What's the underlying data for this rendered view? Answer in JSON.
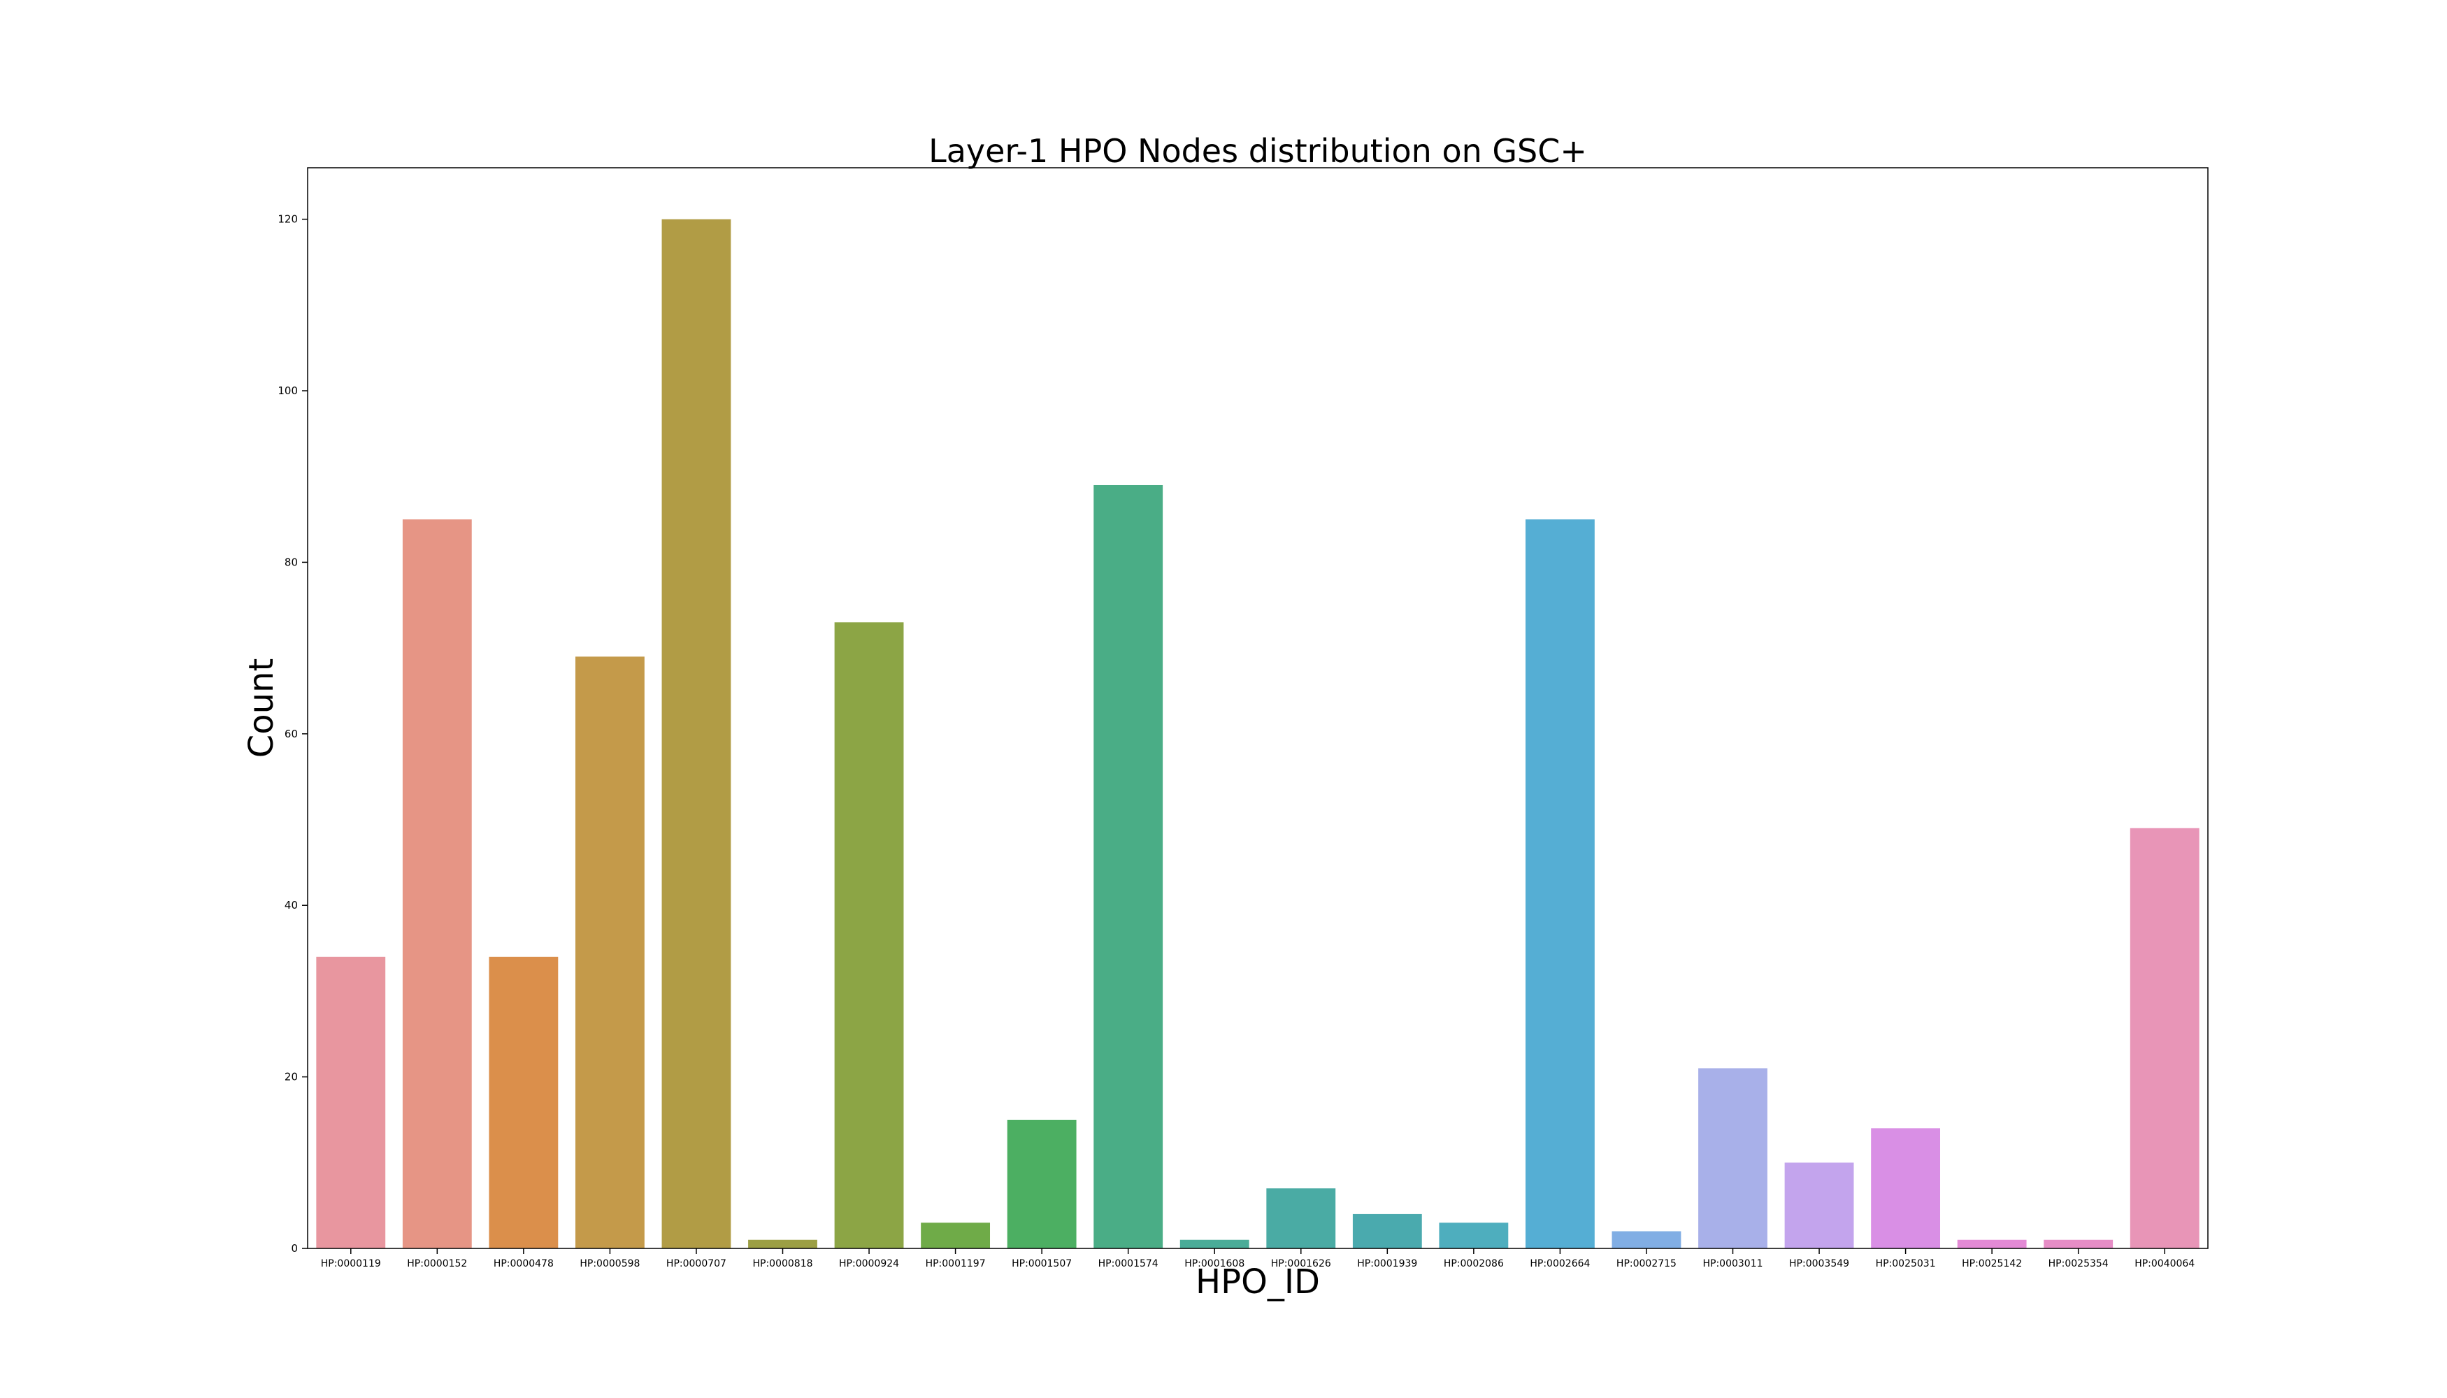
{
  "chart_data": {
    "type": "bar",
    "title": "Layer-1 HPO Nodes distribution on GSC+",
    "xlabel": "HPO_ID",
    "ylabel": "Count",
    "ylim": [
      0,
      126
    ],
    "yticks": [
      0,
      20,
      40,
      60,
      80,
      100,
      120
    ],
    "grid": false,
    "categories": [
      "HP:0000119",
      "HP:0000152",
      "HP:0000478",
      "HP:0000598",
      "HP:0000707",
      "HP:0000818",
      "HP:0000924",
      "HP:0001197",
      "HP:0001507",
      "HP:0001574",
      "HP:0001608",
      "HP:0001626",
      "HP:0001939",
      "HP:0002086",
      "HP:0002664",
      "HP:0002715",
      "HP:0003011",
      "HP:0003549",
      "HP:0025031",
      "HP:0025142",
      "HP:0025354",
      "HP:0040064"
    ],
    "values": [
      34,
      85,
      34,
      69,
      120,
      1,
      73,
      3,
      15,
      89,
      1,
      7,
      4,
      3,
      85,
      2,
      21,
      10,
      14,
      1,
      1,
      49
    ],
    "colors": [
      "#e8969f",
      "#e69585",
      "#db8f4b",
      "#c49a4a",
      "#b19c45",
      "#9c9f44",
      "#8ca545",
      "#6fab48",
      "#4caf62",
      "#4aad86",
      "#4aac98",
      "#4aaba4",
      "#4aaaae",
      "#4eaebe",
      "#55aed4",
      "#81aee4",
      "#a8b0e9",
      "#c3a4ed",
      "#d98fe5",
      "#e38ad5",
      "#e68dc6",
      "#e895b7"
    ]
  }
}
